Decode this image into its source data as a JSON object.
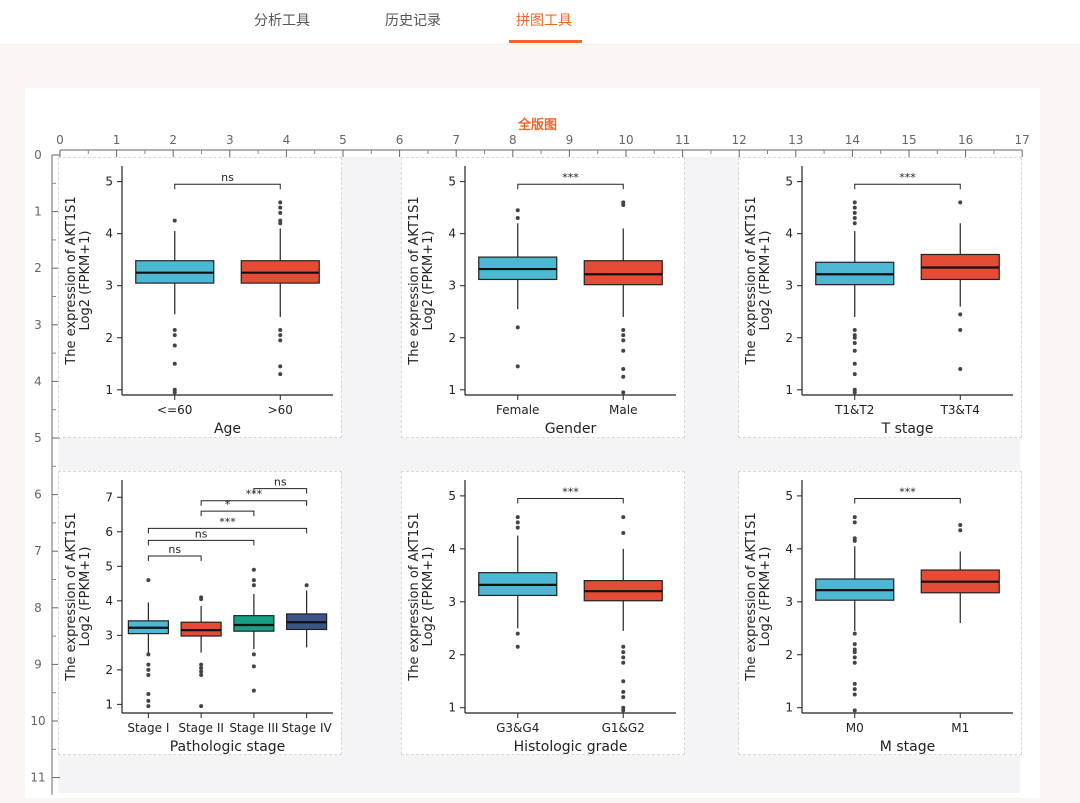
{
  "nav": {
    "tabs": [
      {
        "label": "分析工具",
        "active": false
      },
      {
        "label": "历史记录",
        "active": false
      },
      {
        "label": "拼图工具",
        "active": true
      }
    ],
    "accent_color": "#f0652a"
  },
  "canvas": {
    "title": "全版图",
    "ruler_x": [
      "0",
      "1",
      "2",
      "3",
      "4",
      "5",
      "6",
      "7",
      "8",
      "9",
      "10",
      "11",
      "12",
      "13",
      "14",
      "15",
      "16",
      "17"
    ],
    "ruler_y": [
      "0",
      "1",
      "2",
      "3",
      "4",
      "5",
      "6",
      "7",
      "8",
      "9",
      "10",
      "11"
    ]
  },
  "chart_data": [
    {
      "type": "box",
      "title": "",
      "ylabel_line1": "The expression of AKT1S1",
      "ylabel_line2": "Log2 (FPKM+1)",
      "xlabel": "Age",
      "ylim": [
        0.9,
        5.3
      ],
      "yticks": [
        "1",
        "2",
        "3",
        "4",
        "5"
      ],
      "groups": [
        {
          "name": "<=60",
          "color": "#4db8d4",
          "q1": 3.05,
          "median": 3.25,
          "q3": 3.48,
          "whisker_low": 2.45,
          "whisker_high": 4.05,
          "outliers": [
            4.25,
            2.15,
            2.05,
            1.85,
            1.5,
            1.0,
            0.95
          ]
        },
        {
          "name": ">60",
          "color": "#e64b35",
          "q1": 3.05,
          "median": 3.25,
          "q3": 3.48,
          "whisker_low": 2.4,
          "whisker_high": 4.1,
          "outliers": [
            4.6,
            4.5,
            4.4,
            4.25,
            4.2,
            2.15,
            2.05,
            1.95,
            1.45,
            1.3
          ]
        }
      ],
      "brackets": [
        {
          "from": 0,
          "to": 1,
          "y": 4.95,
          "label": "ns"
        }
      ]
    },
    {
      "type": "box",
      "title": "",
      "ylabel_line1": "The expression of AKT1S1",
      "ylabel_line2": "Log2 (FPKM+1)",
      "xlabel": "Gender",
      "ylim": [
        0.9,
        5.3
      ],
      "yticks": [
        "1",
        "2",
        "3",
        "4",
        "5"
      ],
      "groups": [
        {
          "name": "Female",
          "color": "#4db8d4",
          "q1": 3.12,
          "median": 3.32,
          "q3": 3.55,
          "whisker_low": 2.55,
          "whisker_high": 4.2,
          "outliers": [
            4.45,
            4.3,
            2.2,
            1.45
          ]
        },
        {
          "name": "Male",
          "color": "#e64b35",
          "q1": 3.02,
          "median": 3.22,
          "q3": 3.48,
          "whisker_low": 2.4,
          "whisker_high": 4.1,
          "outliers": [
            4.6,
            4.55,
            2.15,
            2.05,
            1.95,
            1.75,
            1.4,
            1.25,
            0.95
          ]
        }
      ],
      "brackets": [
        {
          "from": 0,
          "to": 1,
          "y": 4.95,
          "label": "***"
        }
      ]
    },
    {
      "type": "box",
      "title": "",
      "ylabel_line1": "The expression of AKT1S1",
      "ylabel_line2": "Log2 (FPKM+1)",
      "xlabel": "T stage",
      "ylim": [
        0.9,
        5.3
      ],
      "yticks": [
        "1",
        "2",
        "3",
        "4",
        "5"
      ],
      "groups": [
        {
          "name": "T1&T2",
          "color": "#4db8d4",
          "q1": 3.02,
          "median": 3.22,
          "q3": 3.45,
          "whisker_low": 2.4,
          "whisker_high": 4.05,
          "outliers": [
            4.6,
            4.5,
            4.4,
            4.3,
            4.2,
            2.15,
            2.05,
            2.0,
            1.9,
            1.75,
            1.5,
            1.3,
            1.0,
            0.95
          ]
        },
        {
          "name": "T3&T4",
          "color": "#e64b35",
          "q1": 3.12,
          "median": 3.35,
          "q3": 3.6,
          "whisker_low": 2.6,
          "whisker_high": 4.2,
          "outliers": [
            4.6,
            2.45,
            2.15,
            1.4
          ]
        }
      ],
      "brackets": [
        {
          "from": 0,
          "to": 1,
          "y": 4.95,
          "label": "***"
        }
      ]
    },
    {
      "type": "box",
      "title": "",
      "ylabel_line1": "The expression of AKT1S1",
      "ylabel_line2": "Log2 (FPKM+1)",
      "xlabel": "Pathologic stage",
      "ylim": [
        0.75,
        7.5
      ],
      "yticks": [
        "1",
        "2",
        "3",
        "4",
        "5",
        "6",
        "7"
      ],
      "groups": [
        {
          "name": "Stage I",
          "color": "#4db8d4",
          "q1": 3.05,
          "median": 3.22,
          "q3": 3.42,
          "whisker_low": 2.5,
          "whisker_high": 3.95,
          "outliers": [
            4.6,
            2.45,
            2.15,
            2.0,
            1.85,
            1.3,
            1.1,
            0.95
          ]
        },
        {
          "name": "Stage II",
          "color": "#e64b35",
          "q1": 2.98,
          "median": 3.15,
          "q3": 3.38,
          "whisker_low": 2.5,
          "whisker_high": 3.85,
          "outliers": [
            4.1,
            4.05,
            2.15,
            2.05,
            1.95,
            1.85,
            0.95
          ]
        },
        {
          "name": "Stage III",
          "color": "#17a085",
          "q1": 3.12,
          "median": 3.3,
          "q3": 3.57,
          "whisker_low": 2.6,
          "whisker_high": 4.2,
          "outliers": [
            4.9,
            4.6,
            4.45,
            2.45,
            2.1,
            1.4
          ]
        },
        {
          "name": "Stage IV",
          "color": "#3c5488",
          "q1": 3.17,
          "median": 3.38,
          "q3": 3.62,
          "whisker_low": 2.65,
          "whisker_high": 4.3,
          "outliers": [
            4.45
          ]
        }
      ],
      "brackets": [
        {
          "from": 2,
          "to": 3,
          "y": 7.25,
          "label": "ns"
        },
        {
          "from": 1,
          "to": 3,
          "y": 6.9,
          "label": "***"
        },
        {
          "from": 1,
          "to": 2,
          "y": 6.6,
          "label": "*"
        },
        {
          "from": 0,
          "to": 3,
          "y": 6.1,
          "label": "***"
        },
        {
          "from": 0,
          "to": 2,
          "y": 5.75,
          "label": "ns"
        },
        {
          "from": 0,
          "to": 1,
          "y": 5.3,
          "label": "ns"
        }
      ]
    },
    {
      "type": "box",
      "title": "",
      "ylabel_line1": "The expression of AKT1S1",
      "ylabel_line2": "Log2 (FPKM+1)",
      "xlabel": "Histologic grade",
      "ylim": [
        0.9,
        5.3
      ],
      "yticks": [
        "1",
        "2",
        "3",
        "4",
        "5"
      ],
      "groups": [
        {
          "name": "G3&G4",
          "color": "#4db8d4",
          "q1": 3.12,
          "median": 3.32,
          "q3": 3.55,
          "whisker_low": 2.5,
          "whisker_high": 4.25,
          "outliers": [
            4.6,
            4.5,
            4.4,
            2.4,
            2.15
          ]
        },
        {
          "name": "G1&G2",
          "color": "#e64b35",
          "q1": 3.02,
          "median": 3.2,
          "q3": 3.4,
          "whisker_low": 2.45,
          "whisker_high": 4.0,
          "outliers": [
            4.6,
            4.3,
            2.15,
            2.05,
            1.95,
            1.85,
            1.5,
            1.3,
            1.2,
            1.0,
            0.95
          ]
        }
      ],
      "brackets": [
        {
          "from": 0,
          "to": 1,
          "y": 4.95,
          "label": "***"
        }
      ]
    },
    {
      "type": "box",
      "title": "",
      "ylabel_line1": "The expression of AKT1S1",
      "ylabel_line2": "Log2 (FPKM+1)",
      "xlabel": "M stage",
      "ylim": [
        0.9,
        5.3
      ],
      "yticks": [
        "1",
        "2",
        "3",
        "4",
        "5"
      ],
      "groups": [
        {
          "name": "M0",
          "color": "#4db8d4",
          "q1": 3.03,
          "median": 3.22,
          "q3": 3.43,
          "whisker_low": 2.45,
          "whisker_high": 4.05,
          "outliers": [
            4.6,
            4.5,
            4.2,
            4.15,
            2.4,
            2.2,
            2.1,
            2.05,
            1.95,
            1.85,
            1.45,
            1.35,
            1.25,
            0.95
          ]
        },
        {
          "name": "M1",
          "color": "#e64b35",
          "q1": 3.17,
          "median": 3.38,
          "q3": 3.6,
          "whisker_low": 2.6,
          "whisker_high": 3.95,
          "outliers": [
            4.45,
            4.35
          ]
        }
      ],
      "brackets": [
        {
          "from": 0,
          "to": 1,
          "y": 4.95,
          "label": "***"
        }
      ]
    }
  ]
}
